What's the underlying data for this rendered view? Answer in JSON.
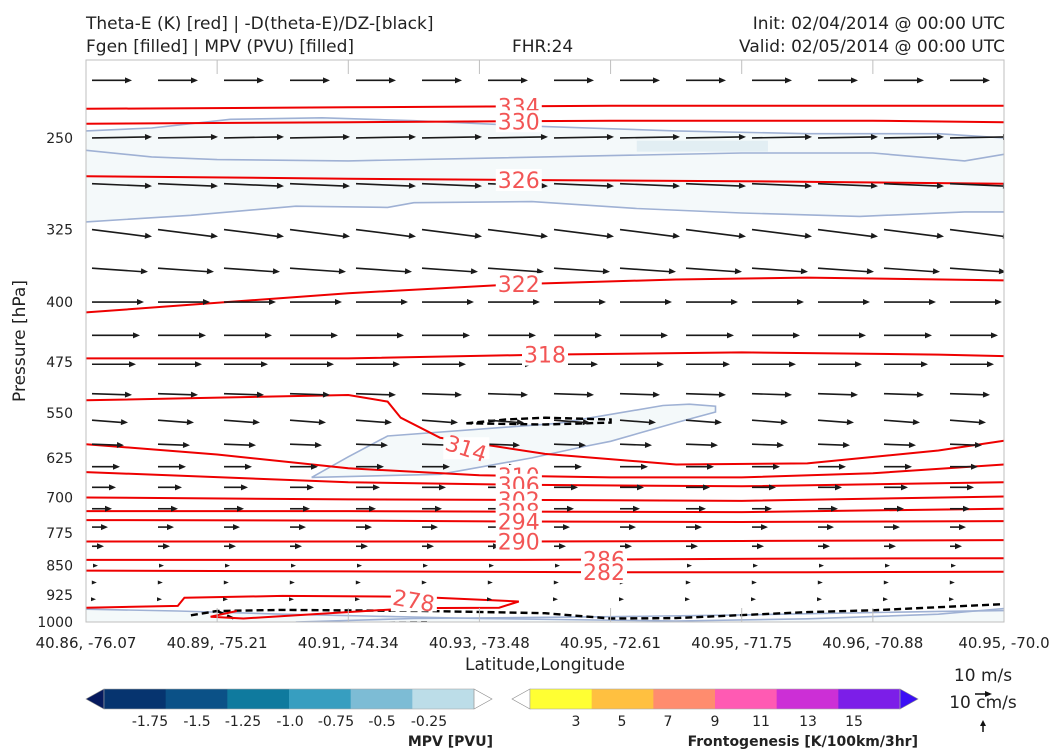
{
  "header": {
    "title_line1": "Theta-E (K) [red] | -D(theta-E)/DZ-[black]",
    "title_line2": "Fgen [filled] | MPV (PVU) [filled]",
    "fhr": "FHR:24",
    "init": "Init: 02/04/2014 @ 00:00 UTC",
    "valid": "Valid: 02/05/2014 @ 00:00 UTC"
  },
  "chart_data": {
    "type": "cross-section",
    "xlabel": "Latitude,Longitude",
    "ylabel": "Pressure [hPa]",
    "yaxis": {
      "scale": "log",
      "inverted": true,
      "ylim": [
        200,
        1000
      ]
    },
    "x_ticks": [
      "40.86, -76.07",
      "40.89, -75.21",
      "40.91, -74.34",
      "40.93, -73.48",
      "40.95, -72.61",
      "40.95, -71.75",
      "40.96, -70.88",
      "40.95, -70.0"
    ],
    "y_ticks": [
      250,
      325,
      400,
      475,
      550,
      625,
      700,
      775,
      850,
      925,
      1000
    ],
    "theta_e_contours": [
      {
        "value": 334,
        "label": "334",
        "p": [
          [
            0,
            230
          ],
          [
            2,
            229
          ],
          [
            4,
            228
          ],
          [
            6,
            228
          ],
          [
            7,
            228
          ]
        ]
      },
      {
        "value": 330,
        "label": "330",
        "p": [
          [
            0,
            240
          ],
          [
            2,
            239
          ],
          [
            4,
            238
          ],
          [
            6,
            238
          ],
          [
            7,
            239
          ]
        ]
      },
      {
        "value": 326,
        "label": "326",
        "p": [
          [
            0,
            279
          ],
          [
            2,
            281
          ],
          [
            3.3,
            282
          ],
          [
            5,
            283
          ],
          [
            7,
            285
          ]
        ]
      },
      {
        "value": 322,
        "label": "322",
        "p": [
          [
            0,
            412
          ],
          [
            2,
            390
          ],
          [
            3.3,
            380
          ],
          [
            4.5,
            375
          ],
          [
            5.5,
            373
          ],
          [
            7,
            376
          ]
        ]
      },
      {
        "value": 318,
        "label": "318",
        "p": [
          [
            0,
            470
          ],
          [
            2,
            470
          ],
          [
            3.5,
            465
          ],
          [
            5,
            462
          ],
          [
            6.5,
            465
          ],
          [
            7,
            467
          ]
        ]
      },
      {
        "value": 314,
        "label": "314",
        "p": [
          [
            0,
            530
          ],
          [
            2,
            522
          ],
          [
            2.3,
            532
          ],
          [
            2.4,
            557
          ],
          [
            2.7,
            590
          ],
          [
            3.5,
            618
          ],
          [
            4.5,
            637
          ],
          [
            5.5,
            635
          ],
          [
            6.5,
            612
          ],
          [
            7,
            595
          ]
        ]
      },
      {
        "value": 310,
        "label": "310",
        "p": [
          [
            0,
            601
          ],
          [
            1,
            619
          ],
          [
            2,
            644
          ],
          [
            3,
            657
          ],
          [
            4,
            661
          ],
          [
            5,
            661
          ],
          [
            6,
            653
          ],
          [
            7,
            637
          ]
        ]
      },
      {
        "value": 306,
        "label": "306",
        "p": [
          [
            0,
            651
          ],
          [
            2,
            670
          ],
          [
            3.3,
            675
          ],
          [
            5,
            678
          ],
          [
            7,
            670
          ]
        ]
      },
      {
        "value": 302,
        "label": "302",
        "p": [
          [
            0,
            700
          ],
          [
            2,
            704
          ],
          [
            3.3,
            705
          ],
          [
            5,
            707
          ],
          [
            7,
            698
          ]
        ]
      },
      {
        "value": 298,
        "label": "298",
        "p": [
          [
            0,
            728
          ],
          [
            2,
            728
          ],
          [
            3.3,
            729
          ],
          [
            5,
            730
          ],
          [
            7,
            723
          ]
        ]
      },
      {
        "value": 294,
        "label": "294",
        "p": [
          [
            0,
            747
          ],
          [
            2,
            748
          ],
          [
            3.3,
            750
          ],
          [
            5,
            751
          ],
          [
            7,
            749
          ]
        ]
      },
      {
        "value": 290,
        "label": "290",
        "p": [
          [
            0,
            794
          ],
          [
            2,
            794
          ],
          [
            3.3,
            794
          ],
          [
            5,
            793
          ],
          [
            7,
            791
          ]
        ]
      },
      {
        "value": 286,
        "label": "286",
        "p": [
          [
            0,
            837
          ],
          [
            2,
            837
          ],
          [
            3.3,
            837
          ],
          [
            4,
            836
          ],
          [
            5.5,
            834
          ],
          [
            7,
            833
          ]
        ]
      },
      {
        "value": 282,
        "label": "282",
        "p": [
          [
            0,
            863
          ],
          [
            2,
            865
          ],
          [
            4,
            867
          ],
          [
            5.5,
            867
          ],
          [
            7,
            866
          ]
        ]
      },
      {
        "value": 278,
        "label": "278",
        "p": [
          [
            0,
            960
          ],
          [
            0.7,
            955
          ],
          [
            0.75,
            933
          ],
          [
            1.5,
            928
          ],
          [
            2.5,
            930
          ],
          [
            3.3,
            943
          ],
          [
            3.15,
            960
          ],
          [
            2.5,
            961
          ],
          [
            1.2,
            990
          ],
          [
            0.95,
            985
          ],
          [
            1.15,
            969
          ]
        ]
      }
    ],
    "mpv_contours": [
      {
        "p": [
          [
            0,
            245
          ],
          [
            0.5,
            243
          ],
          [
            1.1,
            237
          ],
          [
            1.8,
            236
          ],
          [
            2.5,
            238
          ],
          [
            3.5,
            242
          ],
          [
            4.5,
            245
          ],
          [
            5.5,
            247
          ],
          [
            6.5,
            247
          ],
          [
            7,
            250
          ]
        ]
      },
      {
        "p": [
          [
            0,
            318
          ],
          [
            0.8,
            312
          ],
          [
            1.6,
            304
          ],
          [
            2.3,
            305
          ],
          [
            2.5,
            301
          ],
          [
            3.4,
            300
          ],
          [
            4.2,
            306
          ],
          [
            5,
            310
          ],
          [
            5.9,
            313
          ],
          [
            6.7,
            309
          ],
          [
            7,
            309
          ]
        ]
      },
      {
        "p": [
          [
            0,
            259
          ],
          [
            0.5,
            264
          ],
          [
            1,
            266
          ],
          [
            2,
            267
          ],
          [
            3,
            265
          ],
          [
            4,
            263
          ],
          [
            5,
            261
          ],
          [
            6,
            261
          ],
          [
            6.7,
            267
          ],
          [
            7,
            262
          ]
        ]
      },
      {
        "p": [
          [
            1.72,
            661
          ],
          [
            2.0,
            623
          ],
          [
            2.3,
            587
          ],
          [
            3.6,
            566
          ],
          [
            4.4,
            538
          ],
          [
            4.6,
            536
          ],
          [
            4.8,
            539
          ],
          [
            4.8,
            548
          ],
          [
            4.5,
            565
          ],
          [
            4.0,
            596
          ],
          [
            3.8,
            605
          ],
          [
            3.4,
            625
          ],
          [
            2.7,
            655
          ],
          [
            1.72,
            661
          ]
        ]
      },
      {
        "p": [
          [
            0,
            964
          ],
          [
            0.7,
            969
          ],
          [
            1.5,
            978
          ],
          [
            3.0,
            990
          ],
          [
            4.5,
            997
          ],
          [
            5.5,
            991
          ],
          [
            6.5,
            978
          ],
          [
            7,
            962
          ]
        ]
      },
      {
        "p": [
          [
            1.6,
            1000
          ],
          [
            2.5,
            990
          ],
          [
            4,
            985
          ],
          [
            5,
            980
          ],
          [
            6.5,
            970
          ],
          [
            7,
            968
          ]
        ]
      }
    ],
    "dthetae_contours": [
      {
        "p": [
          [
            2.9,
            566
          ],
          [
            3.2,
            560
          ],
          [
            3.5,
            557
          ],
          [
            4.0,
            560
          ],
          [
            4.0,
            565
          ],
          [
            3.5,
            568
          ],
          [
            2.9,
            566
          ]
        ]
      },
      {
        "p": [
          [
            0.8,
            981
          ],
          [
            1.0,
            969
          ],
          [
            1.5,
            966
          ],
          [
            2.6,
            969
          ],
          [
            3.5,
            975
          ],
          [
            4.0,
            990
          ],
          [
            4.5,
            989
          ],
          [
            5.5,
            972
          ],
          [
            6,
            967
          ],
          [
            7,
            950
          ]
        ]
      },
      {
        "p": [
          [
            1.0,
            969
          ],
          [
            1.15,
            994
          ]
        ]
      },
      {
        "p": [
          [
            1.8,
            1004
          ],
          [
            2.6,
            1001
          ]
        ]
      }
    ],
    "wind_rows": [
      {
        "p": 212,
        "len": 10,
        "dy": 0
      },
      {
        "p": 250,
        "len": 15,
        "dy": -0.5
      },
      {
        "p": 285,
        "len": 15,
        "dy": 1.2
      },
      {
        "p": 325,
        "len": 15,
        "dy": 3.5
      },
      {
        "p": 363,
        "len": 14,
        "dy": 1.8
      },
      {
        "p": 400,
        "len": 13,
        "dy": 0
      },
      {
        "p": 440,
        "len": 12,
        "dy": 0
      },
      {
        "p": 478,
        "len": 11,
        "dy": 0
      },
      {
        "p": 520,
        "len": 10,
        "dy": 0.6
      },
      {
        "p": 561,
        "len": 9,
        "dy": 1.2
      },
      {
        "p": 601,
        "len": 8,
        "dy": 0.5
      },
      {
        "p": 641,
        "len": 7,
        "dy": 0
      },
      {
        "p": 680,
        "len": 6,
        "dy": 0
      },
      {
        "p": 723,
        "len": 5,
        "dy": 0
      },
      {
        "p": 762,
        "len": 4,
        "dy": 0
      },
      {
        "p": 805,
        "len": 3,
        "dy": 0
      },
      {
        "p": 851,
        "len": 1.5,
        "dy": 0
      },
      {
        "p": 893,
        "len": 1.2,
        "dy": 0
      },
      {
        "p": 937,
        "len": 1,
        "dy": 0
      }
    ],
    "colorbars": [
      {
        "name": "MPV [PVU]",
        "tick_labels": [
          "-1.75",
          "-1.5",
          "-1.25",
          "-1.0",
          "-0.75",
          "-0.5",
          "-0.25"
        ],
        "colors": [
          "#061a5e",
          "#06346f",
          "#0b5187",
          "#0f7a9e",
          "#379ec0",
          "#7dbcd5",
          "#bcdde8",
          "#ffffff"
        ]
      },
      {
        "name": "Frontogenesis [K/100km/3hr]",
        "tick_labels": [
          "3",
          "5",
          "7",
          "9",
          "11",
          "13",
          "15"
        ],
        "colors": [
          "#ffffff",
          "#ffff33",
          "#ffc040",
          "#ff8c6e",
          "#ff5ab3",
          "#cc2fd6",
          "#7c1ee8",
          "#3b0ff5"
        ]
      }
    ],
    "wind_scale": {
      "label_1": "10 m/s",
      "label_2": "10 cm/s"
    }
  }
}
